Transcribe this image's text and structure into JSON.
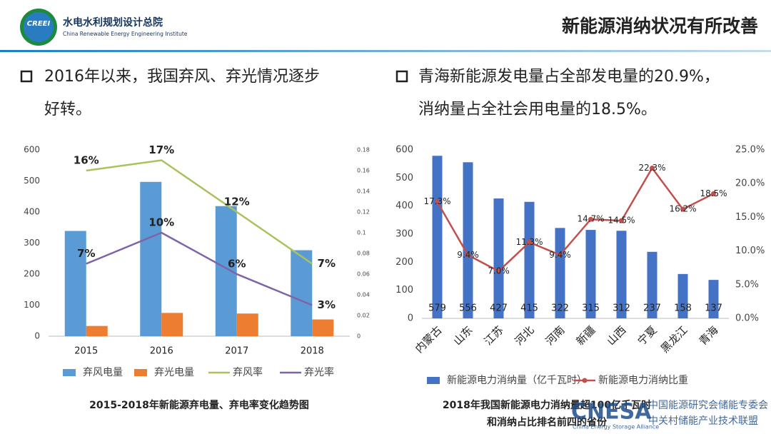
{
  "header": {
    "logo": "CREEI",
    "org": "水电水利规划设计总院",
    "org_en": "China Renewable Energy Engineering Institute",
    "title": "新能源消纳状况有所改善"
  },
  "bullets": [
    {
      "lines": [
        "2016年以来，我国弃风、弃光情况逐步",
        "好转。"
      ]
    },
    {
      "lines": [
        "青海新能源发电量占全部发电量的20.9%，",
        "消纳量占全社会用电量的18.5%。"
      ]
    }
  ],
  "chart_data": [
    {
      "type": "combo",
      "title": [
        "2015-2018年新能源弃电量、弃电率变化趋势图"
      ],
      "categories": [
        "2015",
        "2016",
        "2017",
        "2018"
      ],
      "ylim": [
        0,
        600
      ],
      "yticks": [
        0,
        100,
        200,
        300,
        400,
        500,
        600
      ],
      "y2lim": [
        0,
        0.18
      ],
      "y2ticks": [
        0,
        0.02,
        0.04,
        0.06,
        0.08,
        0.1,
        0.12,
        0.14,
        0.16,
        0.18
      ],
      "grid": false,
      "legend": "bottom",
      "series": [
        {
          "name": "弃风电量",
          "type": "bar",
          "color": "#5b9bd5",
          "values": [
            339,
            497,
            419,
            277
          ]
        },
        {
          "name": "弃光电量",
          "type": "bar",
          "color": "#ed7d31",
          "values": [
            33,
            75,
            73,
            54
          ]
        },
        {
          "name": "弃风率",
          "type": "line",
          "axis": "y2",
          "color": "#a9c25d",
          "values": [
            0.16,
            0.17,
            0.12,
            0.07
          ],
          "value_labels": [
            "16%",
            "17%",
            "12%",
            "7%"
          ]
        },
        {
          "name": "弃光率",
          "type": "line",
          "axis": "y2",
          "color": "#7e63a8",
          "values": [
            0.07,
            0.1,
            0.06,
            0.03
          ],
          "value_labels": [
            "7%",
            "10%",
            "6%",
            "3%"
          ]
        }
      ]
    },
    {
      "type": "combo",
      "title": [
        "2018年我国新能源电力消纳量超100亿千瓦时",
        "和消纳占比排名前四的省份"
      ],
      "categories": [
        "内蒙古",
        "山东",
        "江苏",
        "河北",
        "河南",
        "新疆",
        "山西",
        "宁夏",
        "黑龙江",
        "青海"
      ],
      "ylim": [
        0,
        600
      ],
      "yticks": [
        0,
        100,
        200,
        300,
        400,
        500,
        600
      ],
      "y2lim": [
        0,
        25
      ],
      "y2ticks": [
        {
          "value": 0,
          "label": "0.0%"
        },
        {
          "value": 5,
          "label": "5.0%"
        },
        {
          "value": 10,
          "label": "10.0%"
        },
        {
          "value": 15,
          "label": "15.0%"
        },
        {
          "value": 20,
          "label": "20.0%"
        },
        {
          "value": 25,
          "label": "25.0%"
        }
      ],
      "grid": false,
      "legend": "bottom",
      "series": [
        {
          "name": "新能源电力消纳量（亿千瓦时）",
          "type": "bar",
          "color": "#4472c4",
          "values": [
            579,
            556,
            427,
            415,
            322,
            315,
            312,
            237,
            158,
            137
          ],
          "data_labels": true
        },
        {
          "name": "新能源电力消纳比重",
          "type": "line",
          "axis": "y2",
          "color": "#c0504d",
          "markers": true,
          "values": [
            17.3,
            9.4,
            7,
            11.3,
            9.4,
            14.7,
            14.5,
            22.3,
            16.2,
            18.5
          ],
          "value_labels": [
            "17.3%",
            "9.4%",
            "7.0%",
            "11.3%",
            "9.4%",
            "14.7%",
            "14.5%",
            "22.3%",
            "16.2%",
            "18.5%"
          ]
        }
      ]
    }
  ],
  "watermark": {
    "brand": "CNESA",
    "brand_en": "China Energy Storage Alliance",
    "line1": "中国能源研究会储能专委会",
    "line2": "中关村储能产业技术联盟"
  }
}
